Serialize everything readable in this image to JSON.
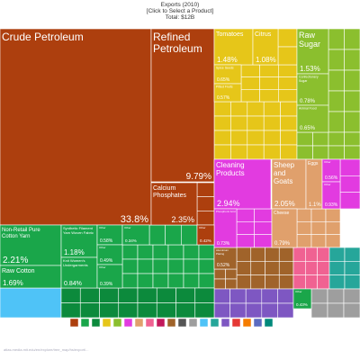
{
  "header": {
    "title": "Exports (2010)",
    "subtitle": "[Click to Select a Product]",
    "total": "Total: $12B"
  },
  "footer": {
    "url": "atlas.media.mit.edu/en/explore/tree_map/hs/export/..."
  },
  "chart_data": {
    "type": "treemap",
    "title": "Exports (2010)",
    "total": "Total: $12B",
    "tiles": [
      {
        "name": "Crude Petroleum",
        "value": 33.8,
        "label": "33.8%",
        "color": "#ad3f0e"
      },
      {
        "name": "Refined Petroleum",
        "value": 9.79,
        "label": "9.79%",
        "color": "#ad3f0e"
      },
      {
        "name": "Calcium Phosphates",
        "value": 2.35,
        "label": "2.35%",
        "color": "#ad3f0e"
      },
      {
        "name": "Non-Retail Pure Cotton Yarn",
        "value": 2.21,
        "label": "2.21%",
        "color": "#1aa64a"
      },
      {
        "name": "Raw Cotton",
        "value": 1.69,
        "label": "1.69%",
        "color": "#1aa64a"
      },
      {
        "name": "Synthetic Filament Yarn Woven Fabric",
        "value": 1.18,
        "label": "1.18%",
        "color": "#1aa64a"
      },
      {
        "name": "Knit Women's Undergarments",
        "value": 0.84,
        "label": "0.84%",
        "color": "#1aa64a"
      },
      {
        "name": "Tomatoes",
        "value": 1.48,
        "label": "1.48%",
        "color": "#e6c619"
      },
      {
        "name": "Citrus",
        "value": 1.08,
        "label": "1.08%",
        "color": "#e6c619"
      },
      {
        "name": "Raw Sugar",
        "value": 1.53,
        "label": "1.53%",
        "color": "#8bbf2e"
      },
      {
        "name": "Cleaning Products",
        "value": 2.94,
        "label": "2.94%",
        "color": "#e23be0"
      },
      {
        "name": "Sheep and Goats",
        "value": 2.05,
        "label": "2.05%",
        "color": "#e0a06c"
      },
      {
        "name": "Cheese",
        "value": 0.79,
        "label": "0.79%",
        "color": "#e0a06c"
      },
      {
        "name": "Eggs",
        "value": 1.1,
        "label": "1.1%",
        "color": "#e0a06c"
      },
      {
        "name": "Spice Seeds",
        "value": 0.65,
        "label": "0.65%",
        "color": "#e6c619"
      },
      {
        "name": "Pitted Fruits",
        "value": 0.57,
        "label": "0.57%",
        "color": "#e6c619"
      },
      {
        "name": "Confectionery Sugar",
        "value": 0.78,
        "label": "0.78%",
        "color": "#8bbf2e"
      },
      {
        "name": "Animal Food",
        "value": 0.65,
        "label": "0.65%",
        "color": "#8bbf2e"
      },
      {
        "name": "Aluminium Plating",
        "value": 0.52,
        "label": "0.52%",
        "color": "#a0632a"
      },
      {
        "name": "Phosphoric Acid",
        "value": 0.73,
        "label": "0.73%",
        "color": "#e23be0"
      },
      {
        "name": "Other",
        "value": 0.56,
        "label": "0.56%",
        "color": "#e23be0"
      },
      {
        "name": "Other",
        "value": 0.93,
        "label": "0.93%",
        "color": "#e23be0"
      },
      {
        "name": "Other",
        "value": 0.58,
        "label": "0.58%",
        "color": "#1aa64a"
      },
      {
        "name": "Other",
        "value": 0.49,
        "label": "0.49%",
        "color": "#1aa64a"
      },
      {
        "name": "Other",
        "value": 0.39,
        "label": "0.39%",
        "color": "#1aa64a"
      },
      {
        "name": "Other",
        "value": 0.34,
        "label": "0.34%",
        "color": "#1aa64a"
      },
      {
        "name": "Other",
        "value": 0.42,
        "label": "0.42%",
        "color": "#ad3f0e"
      },
      {
        "name": "Other",
        "value": 0.43,
        "label": "0.43%",
        "color": "#1aa64a"
      }
    ],
    "legend_colors": [
      "#ad3f0e",
      "#1aa64a",
      "#0c8a3c",
      "#e6c619",
      "#8bbf2e",
      "#e23be0",
      "#e0a06c",
      "#f06292",
      "#c2185b",
      "#a0632a",
      "#555555",
      "#9e9e9e",
      "#4fc3f7",
      "#26a69a",
      "#7e57c2",
      "#e53935",
      "#f57c00",
      "#5c6bc0",
      "#00897b"
    ]
  }
}
